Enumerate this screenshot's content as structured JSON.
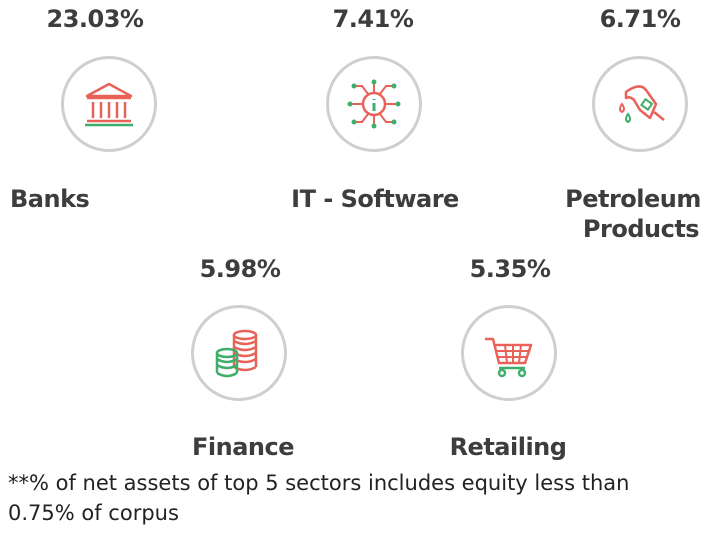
{
  "sectors": [
    {
      "percent": "23.03%",
      "name": "Banks",
      "icon": "bank-icon"
    },
    {
      "percent": "7.41%",
      "name": "IT - Software",
      "icon": "circuit-chip-icon"
    },
    {
      "percent": "6.71%",
      "name_line1": "Petroleum",
      "name_line2": "Products",
      "icon": "fuel-nozzle-icon"
    },
    {
      "percent": "5.98%",
      "name": "Finance",
      "icon": "coin-stack-icon"
    },
    {
      "percent": "5.35%",
      "name": "Retailing",
      "icon": "shopping-cart-icon"
    }
  ],
  "footnote": {
    "line1": "**% of net assets of top 5 sectors includes equity less than",
    "line2": "0.75% of corpus"
  },
  "colors": {
    "red": "#e8625a",
    "green": "#3fae6a",
    "ring": "#cfcfcf",
    "text": "#3d3d3d"
  }
}
